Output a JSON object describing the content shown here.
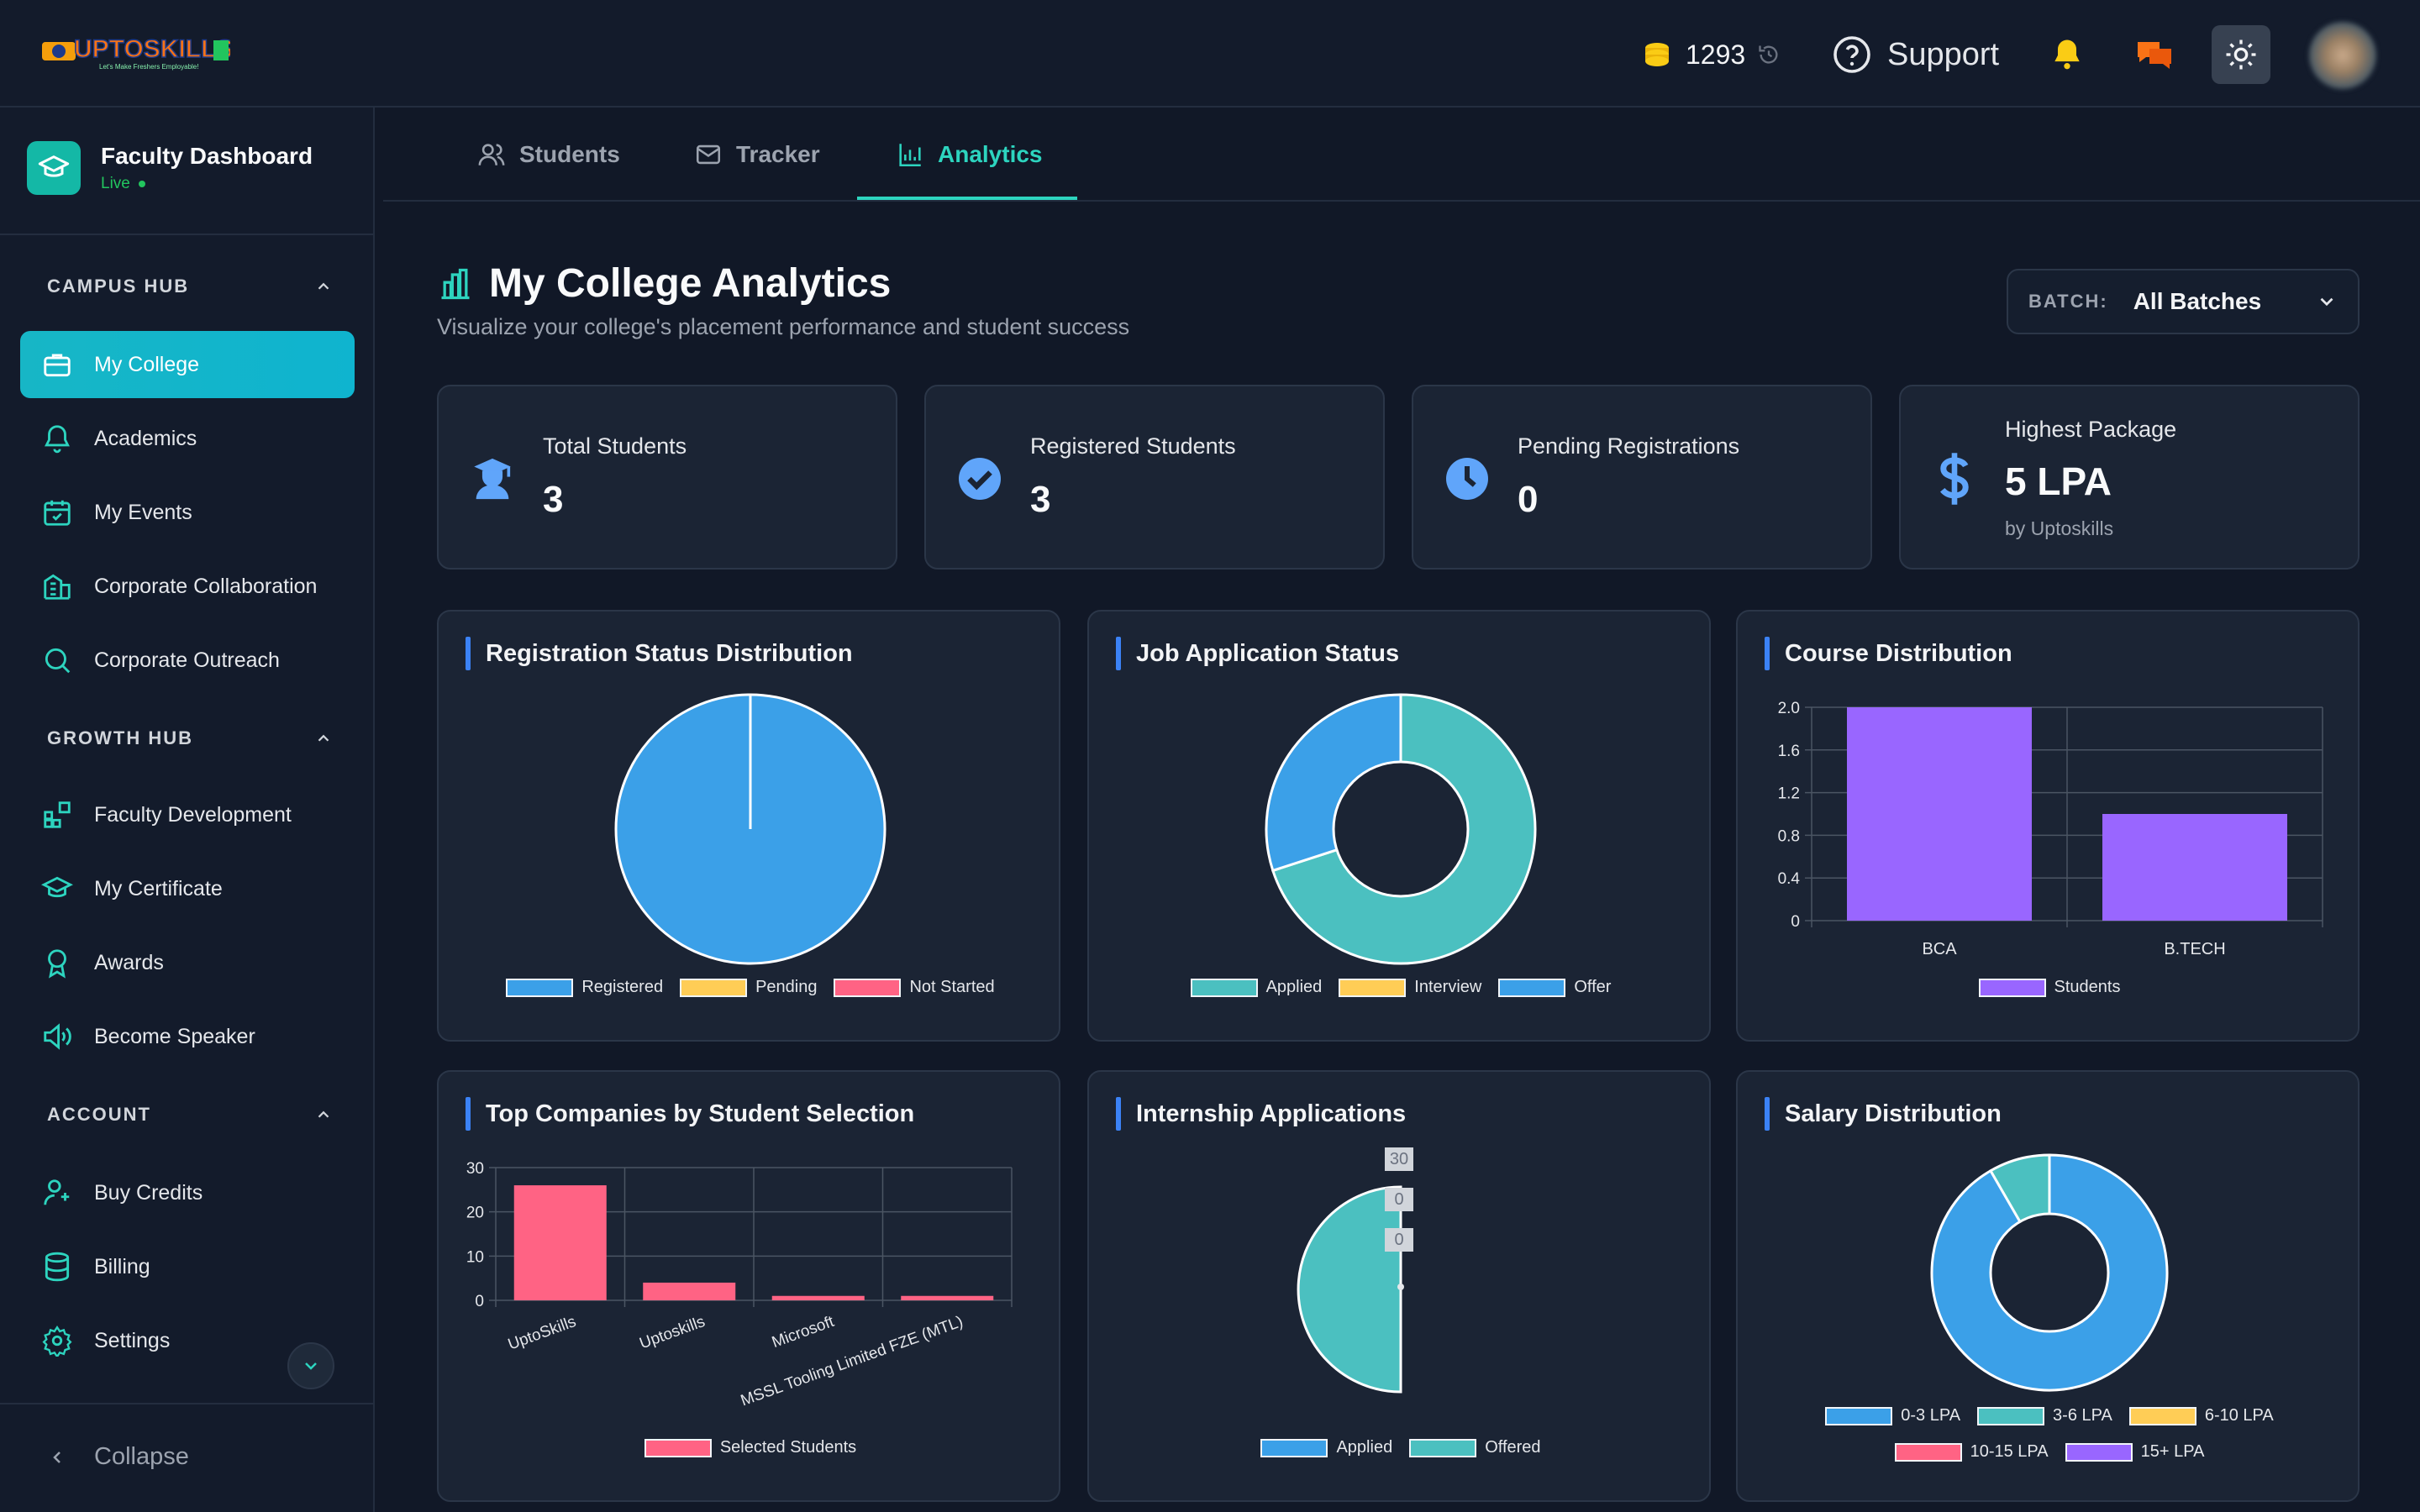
{
  "header": {
    "logo_text": "UPTOSKILLS",
    "logo_tagline": "Let's Make Freshers Employable!",
    "coins": "1293",
    "support_label": "Support"
  },
  "sidebar": {
    "dashboard_title": "Faculty Dashboard",
    "live_label": "Live",
    "sections": [
      {
        "title": "CAMPUS HUB",
        "items": [
          {
            "label": "My College",
            "icon": "briefcase-icon",
            "active": true
          },
          {
            "label": "Academics",
            "icon": "bell-icon"
          },
          {
            "label": "My Events",
            "icon": "calendar-check-icon"
          },
          {
            "label": "Corporate Collaboration",
            "icon": "building-icon"
          },
          {
            "label": "Corporate Outreach",
            "icon": "search-icon"
          }
        ]
      },
      {
        "title": "GROWTH HUB",
        "items": [
          {
            "label": "Faculty Development",
            "icon": "blocks-icon"
          },
          {
            "label": "My Certificate",
            "icon": "graduation-cap-icon"
          },
          {
            "label": "Awards",
            "icon": "award-icon"
          },
          {
            "label": "Become Speaker",
            "icon": "speaker-icon"
          }
        ]
      },
      {
        "title": "ACCOUNT",
        "items": [
          {
            "label": "Buy Credits",
            "icon": "user-credit-icon"
          },
          {
            "label": "Billing",
            "icon": "database-icon"
          },
          {
            "label": "Settings",
            "icon": "gear-icon"
          }
        ]
      }
    ],
    "collapse_label": "Collapse"
  },
  "tabs": [
    {
      "label": "Students",
      "icon": "users-icon"
    },
    {
      "label": "Tracker",
      "icon": "mail-icon"
    },
    {
      "label": "Analytics",
      "icon": "bar-chart-icon",
      "active": true
    }
  ],
  "page": {
    "title": "My College Analytics",
    "subtitle": "Visualize your college's placement performance and student success",
    "batch_label": "BATCH:",
    "batch_value": "All Batches"
  },
  "stats": [
    {
      "label": "Total Students",
      "value": "3",
      "icon": "student-icon"
    },
    {
      "label": "Registered Students",
      "value": "3",
      "icon": "check-circle-icon"
    },
    {
      "label": "Pending Registrations",
      "value": "0",
      "icon": "clock-icon"
    },
    {
      "label": "Highest Package",
      "value": "5 LPA",
      "sub": "by Uptoskills",
      "icon": "dollar-icon"
    }
  ],
  "colors": {
    "accent": "#2dd4bf",
    "blue": "#3ba0e8",
    "teal": "#4bc0c0",
    "yellow": "#ffcd56",
    "pink": "#ff6384",
    "purple": "#9966ff"
  },
  "chart_data": [
    {
      "type": "pie",
      "title": "Registration Status Distribution",
      "categories": [
        "Registered",
        "Pending",
        "Not Started"
      ],
      "values": [
        3,
        0,
        0
      ],
      "colors": [
        "#3ba0e8",
        "#ffcd56",
        "#ff6384"
      ]
    },
    {
      "type": "pie",
      "donut": true,
      "title": "Job Application Status",
      "categories": [
        "Applied",
        "Interview",
        "Offer"
      ],
      "values": [
        7,
        0,
        3
      ],
      "colors": [
        "#4bc0c0",
        "#ffcd56",
        "#3ba0e8"
      ]
    },
    {
      "type": "bar",
      "title": "Course Distribution",
      "categories": [
        "BCA",
        "B.TECH"
      ],
      "series": [
        {
          "name": "Students",
          "values": [
            2,
            1
          ]
        }
      ],
      "ylim": [
        0,
        2
      ],
      "yticks": [
        "0",
        "0.4",
        "0.8",
        "1.2",
        "1.6",
        "2.0"
      ],
      "grid": true,
      "legend": "bottom",
      "color": "#9966ff"
    },
    {
      "type": "bar",
      "title": "Top Companies by Student Selection",
      "categories": [
        "UptoSkills",
        "Uptoskills",
        "Microsoft",
        "MSSL Tooling Limited FZE (MTL)"
      ],
      "series": [
        {
          "name": "Selected Students",
          "values": [
            26,
            4,
            1,
            1
          ]
        }
      ],
      "ylim": [
        0,
        30
      ],
      "yticks": [
        "0",
        "10",
        "20",
        "30"
      ],
      "grid": true,
      "legend": "bottom",
      "color": "#ff6384"
    },
    {
      "type": "pie",
      "title": "Internship Applications",
      "categories": [
        "Applied",
        "Offered"
      ],
      "values": [
        0,
        1
      ],
      "colors": [
        "#3ba0e8",
        "#4bc0c0"
      ],
      "overlay_ticks": [
        "30",
        "0",
        "0"
      ]
    },
    {
      "type": "pie",
      "donut": true,
      "title": "Salary Distribution",
      "categories": [
        "0-3 LPA",
        "3-6 LPA",
        "6-10 LPA",
        "10-15 LPA",
        "15+ LPA"
      ],
      "values": [
        11,
        1,
        0,
        0,
        0
      ],
      "colors": [
        "#3ba0e8",
        "#4bc0c0",
        "#ffcd56",
        "#ff6384",
        "#9966ff"
      ]
    }
  ]
}
